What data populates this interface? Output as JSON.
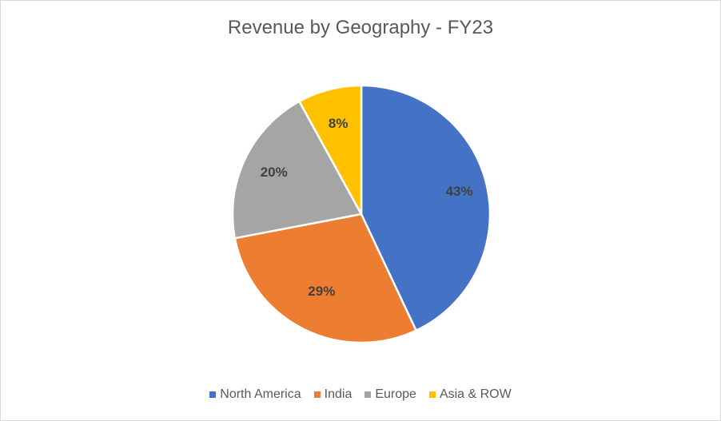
{
  "chart_data": {
    "type": "pie",
    "title": "Revenue by Geography - FY23",
    "categories": [
      "North America",
      "India",
      "Europe",
      "Asia & ROW"
    ],
    "values": [
      43,
      29,
      20,
      8
    ],
    "labels": [
      "43%",
      "29%",
      "20%",
      "8%"
    ],
    "colors": [
      "#4472C4",
      "#ED7D31",
      "#A5A5A5",
      "#FFC000"
    ],
    "legend_position": "bottom"
  }
}
